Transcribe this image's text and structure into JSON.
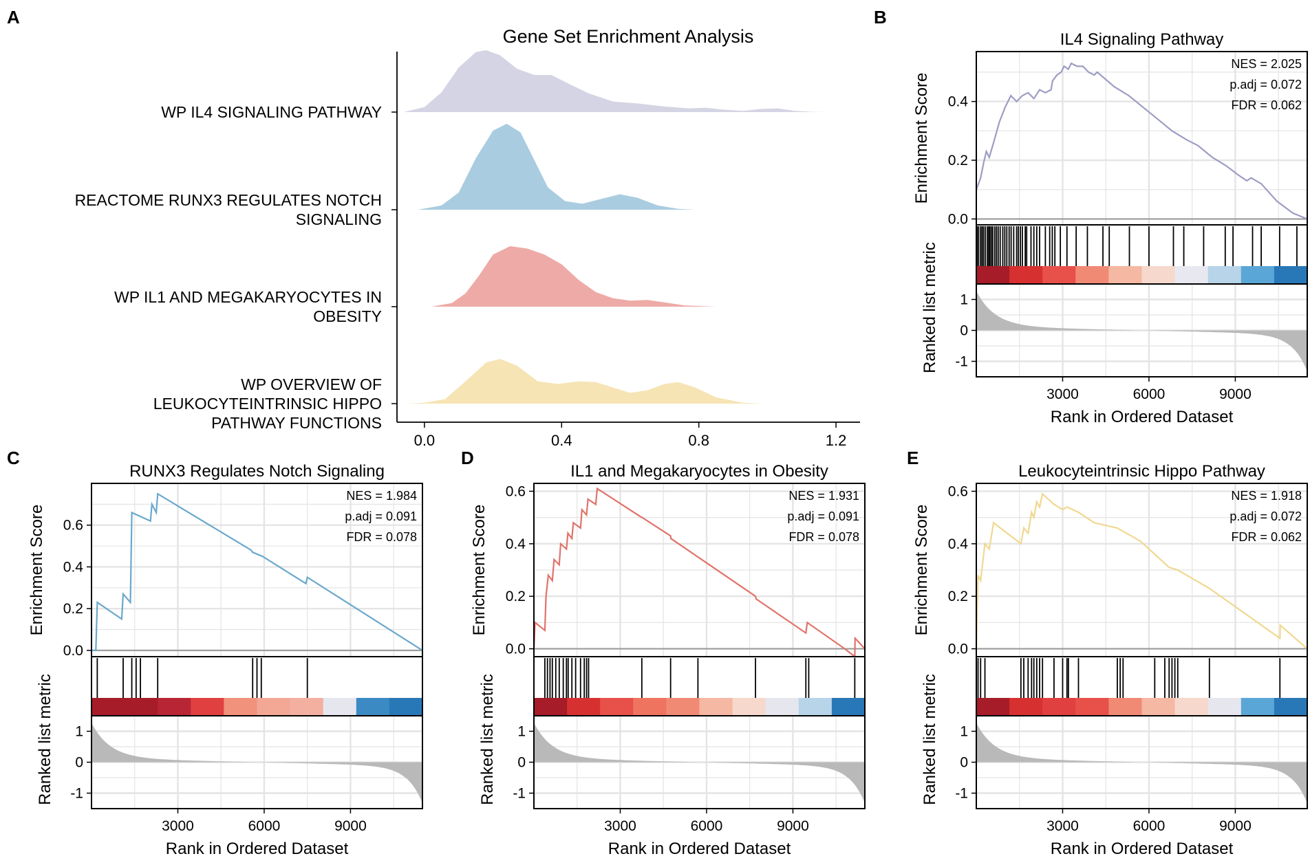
{
  "figure": {
    "panel_labels": [
      "A",
      "B",
      "C",
      "D",
      "E"
    ]
  },
  "chart_data": [
    {
      "panel": "A",
      "type": "ridgeline",
      "title": "Gene Set Enrichment Analysis",
      "xlabel": "",
      "xlim": [
        -0.08,
        1.27
      ],
      "xticks": [
        0.0,
        0.4,
        0.8,
        1.2
      ],
      "xtick_labels": [
        "0.0",
        "0.4",
        "0.8",
        "1.2"
      ],
      "grid": false,
      "series": [
        {
          "name": "WP IL4 SIGNALING PATHWAY",
          "label_lines": [
            "WP IL4 SIGNALING PATHWAY"
          ],
          "color": "#d4d4e4",
          "x": [
            -0.06,
            0.0,
            0.05,
            0.1,
            0.15,
            0.18,
            0.22,
            0.27,
            0.32,
            0.37,
            0.42,
            0.48,
            0.55,
            0.62,
            0.7,
            0.77,
            0.82,
            0.87,
            0.93,
            0.98,
            1.03,
            1.08,
            1.13,
            1.18
          ],
          "density": [
            0.0,
            0.08,
            0.32,
            0.72,
            0.97,
            1.0,
            0.92,
            0.7,
            0.6,
            0.6,
            0.46,
            0.3,
            0.17,
            0.14,
            0.09,
            0.06,
            0.07,
            0.04,
            0.02,
            0.05,
            0.06,
            0.02,
            0.005,
            0.0
          ]
        },
        {
          "name": "REACTOME RUNX3 REGULATES NOTCH SIGNALING",
          "label_lines": [
            "REACTOME RUNX3 REGULATES NOTCH",
            "SIGNALING"
          ],
          "color": "#a9cce0",
          "x": [
            -0.02,
            0.05,
            0.1,
            0.15,
            0.2,
            0.24,
            0.28,
            0.32,
            0.36,
            0.41,
            0.46,
            0.52,
            0.57,
            0.62,
            0.68,
            0.74,
            0.79
          ],
          "density": [
            0.0,
            0.05,
            0.2,
            0.6,
            0.92,
            1.0,
            0.9,
            0.58,
            0.26,
            0.1,
            0.07,
            0.13,
            0.18,
            0.14,
            0.05,
            0.01,
            0.0
          ]
        },
        {
          "name": "WP IL1 AND MEGAKARYOCYTES IN OBESITY",
          "label_lines": [
            "WP IL1 AND MEGAKARYOCYTES IN",
            "OBESITY"
          ],
          "color": "#eeaaa6",
          "x": [
            0.02,
            0.08,
            0.12,
            0.16,
            0.2,
            0.25,
            0.3,
            0.35,
            0.4,
            0.45,
            0.5,
            0.55,
            0.6,
            0.65,
            0.7,
            0.76,
            0.85
          ],
          "density": [
            0.0,
            0.06,
            0.22,
            0.52,
            0.86,
            1.0,
            0.96,
            0.86,
            0.7,
            0.44,
            0.24,
            0.14,
            0.1,
            0.11,
            0.07,
            0.02,
            0.0
          ]
        },
        {
          "name": "WP OVERVIEW OF LEUKOCYTEINTRINSIC HIPPO PATHWAY FUNCTIONS",
          "label_lines": [
            "WP OVERVIEW OF",
            "LEUKOCYTEINTRINSIC HIPPO",
            "PATHWAY FUNCTIONS"
          ],
          "color": "#f6e4b5",
          "x": [
            -0.05,
            0.0,
            0.06,
            0.12,
            0.18,
            0.22,
            0.27,
            0.33,
            0.39,
            0.45,
            0.5,
            0.55,
            0.6,
            0.65,
            0.7,
            0.74,
            0.79,
            0.85,
            0.93,
            0.99
          ],
          "density": [
            0.0,
            0.02,
            0.1,
            0.5,
            0.92,
            1.0,
            0.85,
            0.5,
            0.44,
            0.5,
            0.48,
            0.36,
            0.24,
            0.3,
            0.44,
            0.48,
            0.36,
            0.14,
            0.02,
            0.0
          ]
        }
      ]
    },
    {
      "panel": "B",
      "type": "gsea",
      "title": "IL4 Signaling Pathway",
      "color": "#9c9cc4",
      "stats": [
        "NES = 2.025",
        "p.adj = 0.072",
        "FDR = 0.062"
      ],
      "es_ylabel": "Enrichment Score",
      "metric_ylabel": "Ranked list metric",
      "xlabel": "Rank in Ordered Dataset",
      "xlim": [
        0,
        11500
      ],
      "xticks": [
        3000,
        6000,
        9000
      ],
      "xtick_labels": [
        "3000",
        "6000",
        "9000"
      ],
      "es_ylim": [
        -0.02,
        0.57
      ],
      "es_yticks": [
        0.0,
        0.2,
        0.4
      ],
      "es_ytick_labels": [
        "0.0",
        "0.2",
        "0.4"
      ],
      "metric_ylim": [
        -1.5,
        1.5
      ],
      "metric_yticks": [
        1,
        0,
        -1
      ],
      "metric_ytick_labels": [
        "1",
        "0",
        "-1"
      ],
      "hits": [
        30,
        80,
        150,
        200,
        250,
        310,
        380,
        430,
        470,
        520,
        570,
        640,
        700,
        760,
        830,
        920,
        990,
        1060,
        1140,
        1210,
        1300,
        1400,
        1460,
        1530,
        1600,
        1700,
        1750,
        1900,
        2000,
        2100,
        2200,
        2400,
        2550,
        2640,
        2730,
        2920,
        3150,
        3470,
        3860,
        4400,
        4620,
        5320,
        6000,
        6850,
        7210,
        7900,
        8650,
        8920,
        9600,
        9900,
        10540,
        11140
      ],
      "es": [
        0.1,
        0.14,
        0.19,
        0.23,
        0.21,
        0.26,
        0.33,
        0.38,
        0.42,
        0.4,
        0.42,
        0.43,
        0.41,
        0.44,
        0.43,
        0.44,
        0.47,
        0.49,
        0.5,
        0.52,
        0.51,
        0.53,
        0.52,
        0.52,
        0.5,
        0.49,
        0.5,
        0.45,
        0.42,
        0.38,
        0.34,
        0.3,
        0.27,
        0.25,
        0.21,
        0.18,
        0.15,
        0.13,
        0.14,
        0.12,
        0.06,
        0.02,
        0.0
      ],
      "es_x": [
        0,
        150,
        250,
        350,
        450,
        600,
        800,
        1000,
        1200,
        1400,
        1600,
        1800,
        2000,
        2200,
        2400,
        2600,
        2650,
        2800,
        2950,
        3050,
        3200,
        3300,
        3500,
        3700,
        3900,
        4100,
        4200,
        4800,
        5300,
        5800,
        6300,
        6800,
        7300,
        7700,
        8200,
        8700,
        9100,
        9400,
        9550,
        9900,
        10450,
        11000,
        11500
      ],
      "color_bar": [
        "#a61c28",
        "#d73030",
        "#e8504a",
        "#f08a75",
        "#f5b8a2",
        "#f6d9cc",
        "#e8e8f0",
        "#b7d4e8",
        "#5aa6d6",
        "#2878b8"
      ]
    },
    {
      "panel": "C",
      "type": "gsea",
      "title": "RUNX3 Regulates Notch Signaling",
      "color": "#6aa8cc",
      "stats": [
        "NES = 1.984",
        "p.adj = 0.091",
        "FDR = 0.078"
      ],
      "es_ylabel": "Enrichment Score",
      "metric_ylabel": "Ranked list metric",
      "xlabel": "Rank in Ordered Dataset",
      "xlim": [
        0,
        11500
      ],
      "xticks": [
        3000,
        6000,
        9000
      ],
      "xtick_labels": [
        "3000",
        "6000",
        "9000"
      ],
      "es_ylim": [
        -0.03,
        0.8
      ],
      "es_yticks": [
        0.0,
        0.2,
        0.4,
        0.6
      ],
      "es_ytick_labels": [
        "0.0",
        "0.2",
        "0.4",
        "0.6"
      ],
      "metric_ylim": [
        -1.5,
        1.5
      ],
      "metric_yticks": [
        1,
        0,
        -1
      ],
      "metric_ytick_labels": [
        "1",
        "0",
        "-1"
      ],
      "hits": [
        200,
        1100,
        1400,
        1550,
        1700,
        2300,
        5600,
        5750,
        5900,
        7500
      ],
      "es": [
        0.0,
        0.0,
        0.23,
        0.15,
        0.27,
        0.23,
        0.66,
        0.62,
        0.7,
        0.66,
        0.75,
        0.48,
        0.47,
        0.45,
        0.32,
        0.35,
        0.0
      ],
      "es_x": [
        0,
        150,
        200,
        1050,
        1100,
        1350,
        1400,
        2050,
        2100,
        2250,
        2300,
        5550,
        5600,
        5950,
        7450,
        7500,
        11500
      ],
      "color_bar": [
        "#a61c28",
        "#a61c28",
        "#b82535",
        "#e04140",
        "#f0927c",
        "#f3a896",
        "#f3b0a0",
        "#e6e6ef",
        "#3b8ac4",
        "#2878b8"
      ]
    },
    {
      "panel": "D",
      "type": "gsea",
      "title": "IL1 and Megakaryocytes in Obesity",
      "color": "#e0736a",
      "stats": [
        "NES = 1.931",
        "p.adj = 0.091",
        "FDR = 0.078"
      ],
      "es_ylabel": "Enrichment Score",
      "metric_ylabel": "Ranked list metric",
      "xlabel": "Rank in Ordered Dataset",
      "xlim": [
        0,
        11500
      ],
      "xticks": [
        3000,
        6000,
        9000
      ],
      "xtick_labels": [
        "3000",
        "6000",
        "9000"
      ],
      "es_ylim": [
        -0.03,
        0.63
      ],
      "es_yticks": [
        0.0,
        0.2,
        0.4,
        0.6
      ],
      "es_ytick_labels": [
        "0.0",
        "0.2",
        "0.4",
        "0.6"
      ],
      "metric_ylim": [
        -1.5,
        1.5
      ],
      "metric_yticks": [
        1,
        0,
        -1
      ],
      "metric_ytick_labels": [
        "1",
        "0",
        "-1"
      ],
      "hits": [
        380,
        470,
        560,
        640,
        760,
        880,
        1020,
        1130,
        1190,
        1320,
        1450,
        1620,
        1750,
        1830,
        1900,
        3750,
        4750,
        5700,
        7700,
        9450,
        9550,
        11150
      ],
      "es": [
        0.0,
        0.1,
        0.07,
        0.2,
        0.28,
        0.26,
        0.34,
        0.32,
        0.4,
        0.38,
        0.44,
        0.42,
        0.48,
        0.46,
        0.53,
        0.51,
        0.57,
        0.55,
        0.61,
        0.5,
        0.5,
        0.43,
        0.42,
        0.2,
        0.19,
        0.06,
        0.1,
        0.0,
        -0.03,
        0.04,
        0.0
      ],
      "es_x": [
        0,
        40,
        380,
        420,
        500,
        640,
        700,
        880,
        930,
        1130,
        1180,
        1320,
        1370,
        1620,
        1670,
        1830,
        1880,
        2150,
        2200,
        3750,
        3760,
        4750,
        4760,
        7700,
        7720,
        9450,
        9500,
        10800,
        11150,
        11160,
        11500
      ],
      "color_bar": [
        "#a61c28",
        "#d73030",
        "#e8504a",
        "#ef7460",
        "#f08a75",
        "#f5b8a2",
        "#f6d9cc",
        "#e6e6ef",
        "#b7d4e8",
        "#2878b8"
      ]
    },
    {
      "panel": "E",
      "type": "gsea",
      "title": "Leukocyteintrinsic Hippo Pathway",
      "color": "#f0d890",
      "stats": [
        "NES = 1.918",
        "p.adj = 0.072",
        "FDR = 0.062"
      ],
      "es_ylabel": "Enrichment Score",
      "metric_ylabel": "Ranked list metric",
      "xlabel": "Rank in Ordered Dataset",
      "xlim": [
        0,
        11500
      ],
      "xticks": [
        3000,
        6000,
        9000
      ],
      "xtick_labels": [
        "3000",
        "6000",
        "9000"
      ],
      "es_ylim": [
        -0.03,
        0.63
      ],
      "es_yticks": [
        0.0,
        0.2,
        0.4,
        0.6
      ],
      "es_ytick_labels": [
        "0.0",
        "0.2",
        "0.4",
        "0.6"
      ],
      "metric_ylim": [
        -1.5,
        1.5
      ],
      "metric_yticks": [
        1,
        0,
        -1
      ],
      "metric_ytick_labels": [
        "1",
        "0",
        "-1"
      ],
      "hits": [
        60,
        150,
        300,
        1550,
        1650,
        1800,
        1920,
        2000,
        2100,
        2200,
        2300,
        2700,
        3000,
        3150,
        3200,
        3550,
        4900,
        5000,
        5100,
        6200,
        6550,
        6700,
        6800,
        6900,
        7000,
        8100,
        10550
      ],
      "es": [
        0.0,
        0.28,
        0.26,
        0.4,
        0.38,
        0.48,
        0.4,
        0.46,
        0.44,
        0.52,
        0.5,
        0.56,
        0.54,
        0.59,
        0.57,
        0.55,
        0.53,
        0.54,
        0.52,
        0.48,
        0.46,
        0.41,
        0.36,
        0.31,
        0.3,
        0.23,
        0.04,
        0.09,
        0.0
      ],
      "es_x": [
        0,
        60,
        150,
        300,
        450,
        600,
        1550,
        1650,
        1800,
        1920,
        2000,
        2100,
        2200,
        2300,
        2500,
        2700,
        3000,
        3150,
        3550,
        4100,
        4900,
        5700,
        6200,
        6700,
        7000,
        8100,
        10550,
        10560,
        11500
      ],
      "color_bar": [
        "#a61c28",
        "#d73030",
        "#e04140",
        "#e8504a",
        "#f08a75",
        "#f5b8a2",
        "#f6d9cc",
        "#e6e6ef",
        "#5aa6d6",
        "#2878b8"
      ]
    }
  ]
}
